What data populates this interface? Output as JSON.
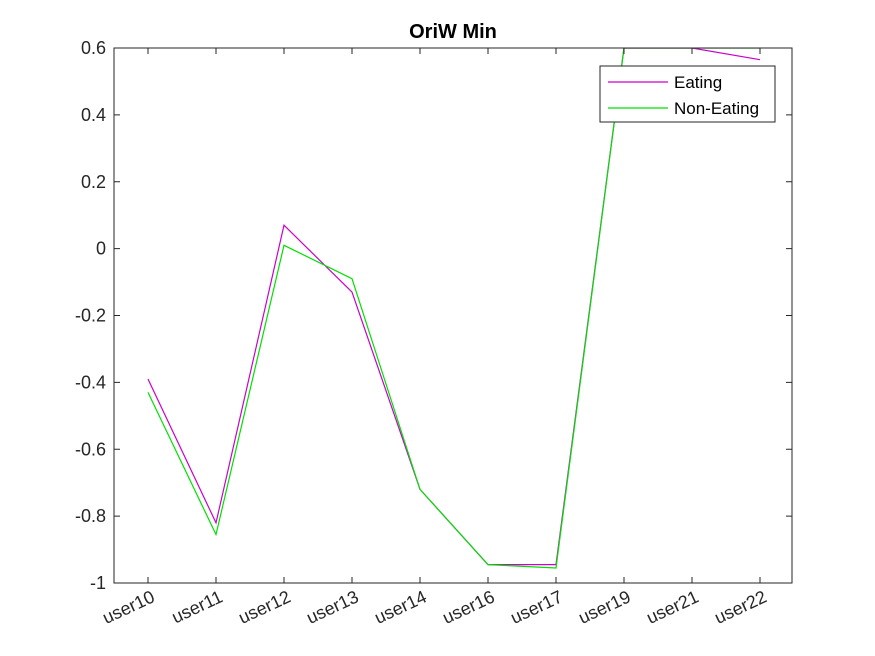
{
  "chart_data": {
    "type": "line",
    "title": "OriW Min",
    "xlabel": "",
    "ylabel": "",
    "categories": [
      "user10",
      "user11",
      "user12",
      "user13",
      "user14",
      "user16",
      "user17",
      "user19",
      "user21",
      "user22"
    ],
    "ylim": [
      -1,
      0.6
    ],
    "yticks": [
      "-1",
      "-0.8",
      "-0.6",
      "-0.4",
      "-0.2",
      "0",
      "0.2",
      "0.4",
      "0.6"
    ],
    "grid": false,
    "legend_position": "top-right",
    "series": [
      {
        "name": "Eating",
        "color": "#cc00cc",
        "values": [
          -0.39,
          -0.82,
          0.07,
          -0.13,
          -0.72,
          -0.945,
          -0.945,
          0.6,
          0.6,
          0.565
        ]
      },
      {
        "name": "Non-Eating",
        "color": "#00e000",
        "values": [
          -0.43,
          -0.855,
          0.01,
          -0.09,
          -0.72,
          -0.945,
          -0.955,
          0.6,
          0.6,
          0.6
        ]
      }
    ]
  }
}
